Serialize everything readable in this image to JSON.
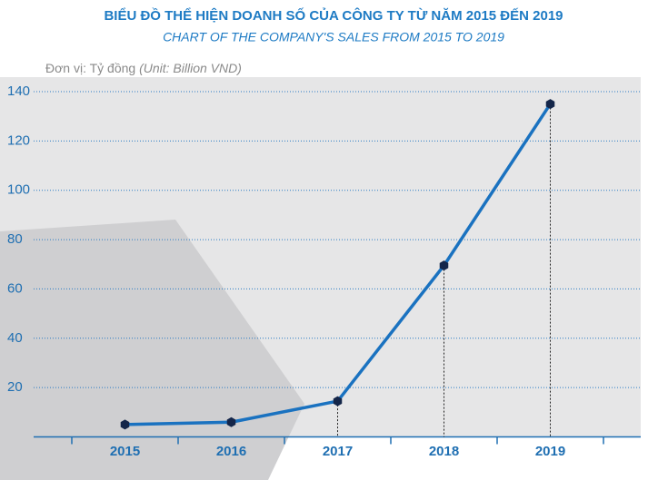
{
  "chart_data": {
    "type": "line",
    "title": "BIỂU ĐỒ THỂ HIỆN DOANH SỐ CỦA CÔNG TY TỪ NĂM 2015 ĐẾN 2019",
    "subtitle": "CHART OF THE COMPANY'S SALES FROM 2015 TO 2019",
    "unit_label": "Đơn vị: Tỷ đồng",
    "unit_label_en": "(Unit: Billion VND)",
    "categories": [
      "2015",
      "2016",
      "2017",
      "2018",
      "2019"
    ],
    "values": [
      5,
      6,
      14.5,
      69.5,
      135
    ],
    "color": "#1a72c0",
    "marker_color": "#14264a",
    "ylim": [
      0,
      140
    ],
    "yticks": [
      20,
      40,
      60,
      80,
      100,
      120,
      140
    ],
    "grid": true
  }
}
